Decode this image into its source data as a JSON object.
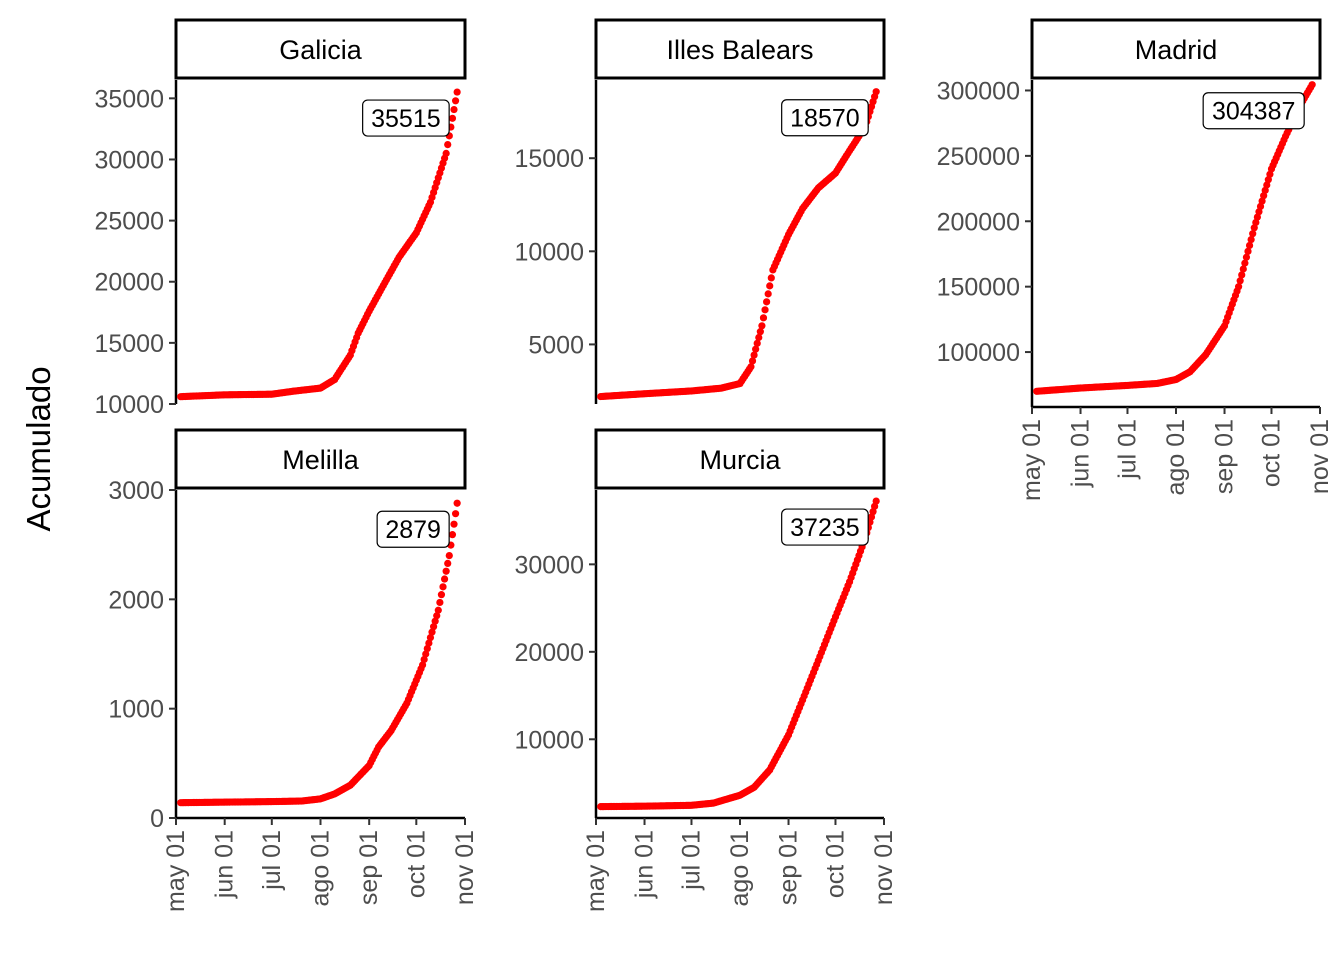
{
  "y_axis_title": "Acumulado",
  "x_tick_labels": [
    "may 01",
    "jun 01",
    "jul 01",
    "ago 01",
    "sep 01",
    "oct 01",
    "nov 01"
  ],
  "point_color": "#ff0000",
  "chart_data": [
    {
      "type": "scatter",
      "title": "Galicia",
      "xlabel": "",
      "ylabel": "Acumulado",
      "xlim": [
        "2020-05-01",
        "2020-11-01"
      ],
      "ylim": [
        10000,
        36500
      ],
      "yticks": [
        10000,
        15000,
        20000,
        25000,
        30000,
        35000
      ],
      "last_value": 35515,
      "series": [
        {
          "x": [
            "2020-05-04",
            "2020-06-01",
            "2020-07-01",
            "2020-07-15",
            "2020-08-01",
            "2020-08-10",
            "2020-08-20",
            "2020-08-25",
            "2020-09-01",
            "2020-09-10",
            "2020-09-20",
            "2020-10-01",
            "2020-10-10",
            "2020-10-20",
            "2020-10-27"
          ],
          "y": [
            10600,
            10750,
            10800,
            11050,
            11300,
            12000,
            14000,
            15800,
            17600,
            19700,
            22000,
            24000,
            26500,
            30500,
            35515
          ]
        }
      ]
    },
    {
      "type": "scatter",
      "title": "Illes Balears",
      "xlabel": "",
      "ylabel": "Acumulado",
      "xlim": [
        "2020-05-01",
        "2020-11-01"
      ],
      "ylim": [
        1800,
        19200
      ],
      "yticks": [
        5000,
        10000,
        15000
      ],
      "last_value": 18570,
      "series": [
        {
          "x": [
            "2020-05-04",
            "2020-06-01",
            "2020-07-01",
            "2020-07-20",
            "2020-08-01",
            "2020-08-08",
            "2020-08-15",
            "2020-08-22",
            "2020-09-01",
            "2020-09-10",
            "2020-09-20",
            "2020-10-01",
            "2020-10-10",
            "2020-10-20",
            "2020-10-27"
          ],
          "y": [
            2200,
            2350,
            2500,
            2650,
            2900,
            3800,
            6000,
            9000,
            10900,
            12300,
            13400,
            14200,
            15400,
            16700,
            18570
          ]
        }
      ]
    },
    {
      "type": "scatter",
      "title": "Madrid",
      "xlabel": "",
      "ylabel": "Acumulado",
      "xlim": [
        "2020-05-01",
        "2020-11-01"
      ],
      "ylim": [
        58000,
        308000
      ],
      "yticks": [
        100000,
        150000,
        200000,
        250000,
        300000
      ],
      "last_value": 304387,
      "series": [
        {
          "x": [
            "2020-05-04",
            "2020-06-01",
            "2020-07-01",
            "2020-07-20",
            "2020-08-01",
            "2020-08-10",
            "2020-08-20",
            "2020-09-01",
            "2020-09-10",
            "2020-09-20",
            "2020-10-01",
            "2020-10-10",
            "2020-10-20",
            "2020-10-27"
          ],
          "y": [
            70000,
            72500,
            74500,
            76000,
            79000,
            85000,
            98000,
            120000,
            150000,
            195000,
            240000,
            265000,
            290000,
            304387
          ]
        }
      ]
    },
    {
      "type": "scatter",
      "title": "Melilla",
      "xlabel": "",
      "ylabel": "Acumulado",
      "xlim": [
        "2020-05-01",
        "2020-11-01"
      ],
      "ylim": [
        0,
        3000
      ],
      "yticks": [
        0,
        1000,
        2000,
        3000
      ],
      "last_value": 2879,
      "series": [
        {
          "x": [
            "2020-05-04",
            "2020-06-01",
            "2020-07-01",
            "2020-07-20",
            "2020-08-01",
            "2020-08-10",
            "2020-08-20",
            "2020-09-01",
            "2020-09-07",
            "2020-09-15",
            "2020-09-25",
            "2020-10-05",
            "2020-10-15",
            "2020-10-22",
            "2020-10-27"
          ],
          "y": [
            140,
            145,
            150,
            155,
            175,
            220,
            300,
            480,
            650,
            800,
            1050,
            1400,
            1900,
            2400,
            2879
          ]
        }
      ]
    },
    {
      "type": "scatter",
      "title": "Murcia",
      "xlabel": "",
      "ylabel": "Acumulado",
      "xlim": [
        "2020-05-01",
        "2020-11-01"
      ],
      "ylim": [
        1000,
        38500
      ],
      "yticks": [
        10000,
        20000,
        30000
      ],
      "last_value": 37235,
      "series": [
        {
          "x": [
            "2020-05-04",
            "2020-06-01",
            "2020-07-01",
            "2020-07-15",
            "2020-08-01",
            "2020-08-10",
            "2020-08-20",
            "2020-09-01",
            "2020-09-10",
            "2020-09-20",
            "2020-10-01",
            "2020-10-10",
            "2020-10-20",
            "2020-10-27"
          ],
          "y": [
            2300,
            2350,
            2450,
            2700,
            3600,
            4500,
            6500,
            10500,
            14500,
            19000,
            24000,
            28000,
            33000,
            37235
          ]
        }
      ]
    }
  ]
}
